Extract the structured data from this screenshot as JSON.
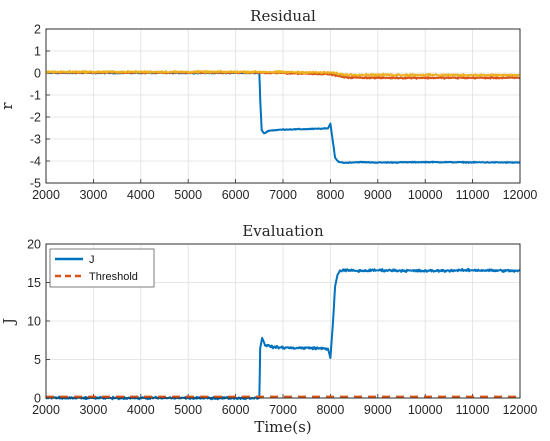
{
  "chart_data": [
    {
      "type": "line",
      "title": "Residual",
      "xlabel": "",
      "ylabel": "r",
      "xlim": [
        2000,
        12000
      ],
      "ylim": [
        -5,
        2
      ],
      "xticks": [
        2000,
        3000,
        4000,
        5000,
        6000,
        7000,
        8000,
        9000,
        10000,
        11000,
        12000
      ],
      "yticks": [
        2,
        1,
        0,
        -1,
        -2,
        -3,
        -4,
        -5
      ],
      "grid": true,
      "legend": null,
      "series": [
        {
          "color": "#0072BD",
          "noise": 0.03,
          "x": [
            2000,
            6500,
            6520,
            6550,
            6600,
            6700,
            7000,
            7500,
            7950,
            8000,
            8050,
            8100,
            8150,
            8200,
            8300,
            8600,
            9000,
            10000,
            11000,
            12000
          ],
          "values": [
            0,
            0,
            -1.2,
            -2.6,
            -2.75,
            -2.62,
            -2.57,
            -2.55,
            -2.52,
            -2.3,
            -3.1,
            -3.85,
            -4.0,
            -4.05,
            -4.08,
            -4.05,
            -4.07,
            -4.05,
            -4.06,
            -4.07
          ]
        },
        {
          "color": "#D95319",
          "noise": 0.05,
          "x": [
            2000,
            6500,
            6600,
            7000,
            8000,
            8300,
            9000,
            12000
          ],
          "values": [
            0.02,
            0.02,
            0.0,
            0.0,
            -0.05,
            -0.2,
            -0.22,
            -0.22
          ]
        },
        {
          "color": "#EDB120",
          "noise": 0.06,
          "x": [
            2000,
            6500,
            8000,
            8300,
            12000
          ],
          "values": [
            0.05,
            0.05,
            0.02,
            -0.08,
            -0.1
          ]
        }
      ]
    },
    {
      "type": "line",
      "title": "Evaluation",
      "xlabel": "Time(s)",
      "ylabel": "J",
      "xlim": [
        2000,
        12000
      ],
      "ylim": [
        0,
        20
      ],
      "xticks": [
        2000,
        3000,
        4000,
        5000,
        6000,
        7000,
        8000,
        9000,
        10000,
        11000,
        12000
      ],
      "yticks": [
        20,
        15,
        10,
        5,
        0
      ],
      "grid": true,
      "legend": "top-left",
      "series": [
        {
          "name": "J",
          "color": "#0072BD",
          "style": "solid",
          "noise": 0.22,
          "x": [
            2000,
            6500,
            6520,
            6560,
            6620,
            6800,
            7200,
            7600,
            7950,
            8000,
            8050,
            8100,
            8150,
            8200,
            8300,
            8600,
            9000,
            10000,
            11000,
            12000
          ],
          "values": [
            0,
            0,
            6.5,
            7.8,
            6.9,
            6.6,
            6.5,
            6.5,
            6.4,
            5.2,
            9.5,
            14.5,
            16.0,
            16.5,
            16.6,
            16.5,
            16.6,
            16.5,
            16.6,
            16.5
          ]
        },
        {
          "name": "Threshold",
          "color": "#D95319",
          "style": "dashed",
          "noise": 0,
          "x": [
            2000,
            12000
          ],
          "values": [
            0.15,
            0.15
          ]
        }
      ]
    }
  ]
}
